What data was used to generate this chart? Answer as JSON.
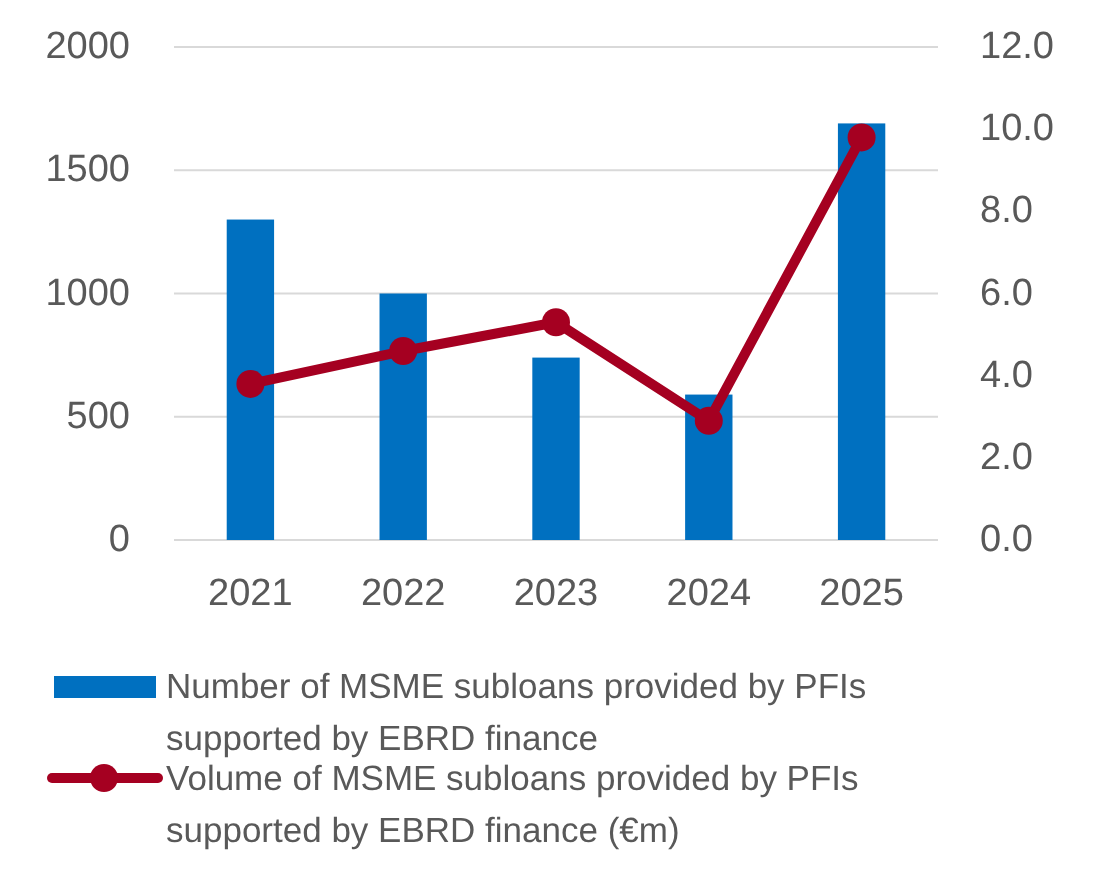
{
  "chart_data": {
    "type": "bar",
    "categories": [
      "2021",
      "2022",
      "2023",
      "2024",
      "2025"
    ],
    "series": [
      {
        "name": "Number of MSME subloans provided by PFIs supported by EBRD finance",
        "color": "#0070c0",
        "values": [
          1300,
          1000,
          740,
          590,
          1690
        ]
      },
      {
        "name": "Volume of MSME subloans provided by PFIs supported by EBRD finance (€m)",
        "type": "line",
        "axis": "y2",
        "color": "#a50021",
        "marker": "circle",
        "values": [
          3.8,
          4.6,
          5.3,
          2.9,
          9.8
        ]
      }
    ],
    "ylim": [
      0,
      2000
    ],
    "yticks": [
      0,
      500,
      1000,
      1500,
      2000
    ],
    "y2lim": [
      0,
      12
    ],
    "y2ticks": [
      {
        "value": 0,
        "label": "0.0"
      },
      {
        "value": 2,
        "label": "2.0"
      },
      {
        "value": 4,
        "label": "4.0"
      },
      {
        "value": 6,
        "label": "6.0"
      },
      {
        "value": 8,
        "label": "8.0"
      },
      {
        "value": 10,
        "label": "10.0"
      },
      {
        "value": 12,
        "label": "12.0"
      }
    ],
    "grid": "y",
    "legend": "bottom"
  }
}
